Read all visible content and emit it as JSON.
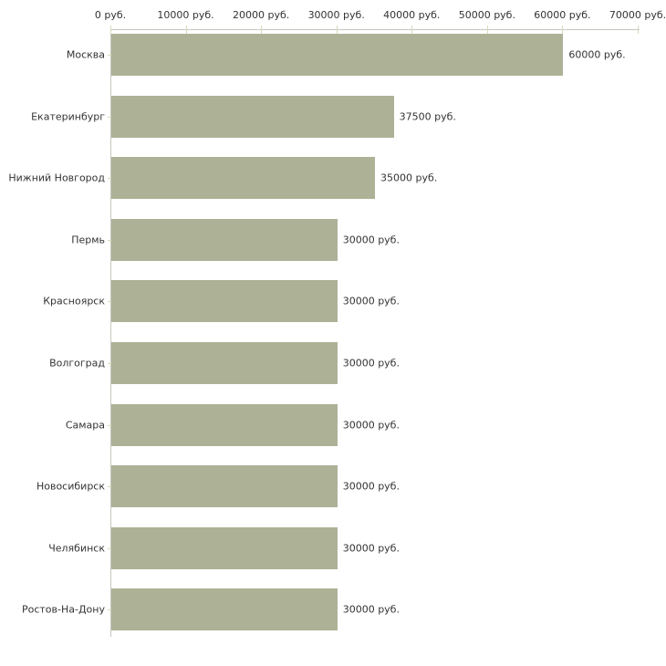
{
  "chart_data": {
    "type": "bar",
    "orientation": "horizontal",
    "title": "",
    "xlabel": "",
    "ylabel": "",
    "unit": "руб.",
    "categories": [
      "Москва",
      "Екатеринбург",
      "Нижний Новгород",
      "Пермь",
      "Красноярск",
      "Волгоград",
      "Самара",
      "Новосибирск",
      "Челябинск",
      "Ростов-На-Дону"
    ],
    "values": [
      60000,
      37500,
      35000,
      30000,
      30000,
      30000,
      30000,
      30000,
      30000,
      30000
    ],
    "value_labels": [
      "60000 руб.",
      "37500 руб.",
      "35000 руб.",
      "30000 руб.",
      "30000 руб.",
      "30000 руб.",
      "30000 руб.",
      "30000 руб.",
      "30000 руб.",
      "30000 руб."
    ],
    "x_ticks": {
      "values": [
        0,
        10000,
        20000,
        30000,
        40000,
        50000,
        60000,
        70000
      ],
      "labels": [
        "0 руб.",
        "10000 руб.",
        "20000 руб.",
        "30000 руб.",
        "40000 руб.",
        "50000 руб.",
        "60000 руб.",
        "70000 руб."
      ]
    },
    "xlim": [
      0,
      70000
    ],
    "grid": false,
    "legend": false,
    "axis_position": "top",
    "colors": {
      "bar": "#adb297",
      "axis_line": "#c5c8c0",
      "tick_mark": "#d8dbbc",
      "text": "#333333",
      "background": "#ffffff"
    }
  }
}
